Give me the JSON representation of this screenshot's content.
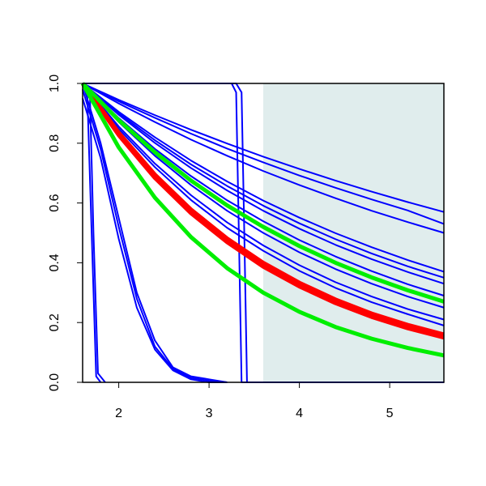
{
  "chart_data": {
    "type": "line",
    "xlim": [
      1.6,
      5.6
    ],
    "ylim": [
      0,
      1
    ],
    "xticks": [
      2,
      3,
      4,
      5
    ],
    "yticks": [
      {
        "value": 0,
        "label": "0.0"
      },
      {
        "value": 0.2,
        "label": "0.2"
      },
      {
        "value": 0.4,
        "label": "0.4"
      },
      {
        "value": 0.6,
        "label": "0.6"
      },
      {
        "value": 0.8,
        "label": "0.8"
      },
      {
        "value": 1,
        "label": "1.0"
      }
    ],
    "shade": {
      "xlim": [
        3.6,
        5.6
      ],
      "color": "#e0eded"
    },
    "x": [
      1.6,
      2.0,
      2.4,
      2.8,
      3.2,
      3.6,
      4.0,
      4.4,
      4.8,
      5.2,
      5.6
    ],
    "series": [
      {
        "color": "#0000ff",
        "values": [
          1,
          0.945,
          0.894,
          0.845,
          0.799,
          0.755,
          0.714,
          0.675,
          0.638,
          0.603,
          0.57
        ]
      },
      {
        "color": "#0000ff",
        "values": [
          1,
          0.94,
          0.885,
          0.832,
          0.782,
          0.736,
          0.692,
          0.651,
          0.612,
          0.575,
          0.53
        ]
      },
      {
        "color": "#0000ff",
        "values": [
          1,
          0.933,
          0.871,
          0.812,
          0.758,
          0.707,
          0.66,
          0.616,
          0.574,
          0.536,
          0.5
        ]
      },
      {
        "color": "#0000ff",
        "values": [
          1,
          0.905,
          0.82,
          0.742,
          0.672,
          0.608,
          0.551,
          0.499,
          0.452,
          0.409,
          0.37
        ]
      },
      {
        "color": "#0000ff",
        "values": [
          1,
          0.9,
          0.81,
          0.729,
          0.657,
          0.591,
          0.532,
          0.479,
          0.431,
          0.388,
          0.35
        ]
      },
      {
        "color": "#0000ff",
        "values": [
          1,
          0.895,
          0.801,
          0.717,
          0.642,
          0.574,
          0.514,
          0.46,
          0.412,
          0.369,
          0.33
        ]
      },
      {
        "color": "#0000ff",
        "values": [
          1,
          0.884,
          0.781,
          0.69,
          0.609,
          0.539,
          0.476,
          0.421,
          0.372,
          0.328,
          0.29
        ]
      },
      {
        "color": "#0000ff",
        "values": [
          1,
          0.871,
          0.758,
          0.66,
          0.574,
          0.5,
          0.435,
          0.379,
          0.33,
          0.287,
          0.25
        ]
      },
      {
        "color": "#0000ff",
        "values": [
          1,
          0.856,
          0.732,
          0.626,
          0.535,
          0.458,
          0.392,
          0.335,
          0.287,
          0.245,
          0.21
        ]
      },
      {
        "color": "#0000ff",
        "values": [
          1,
          0.848,
          0.72,
          0.61,
          0.517,
          0.44,
          0.373,
          0.316,
          0.268,
          0.228,
          0.19
        ]
      },
      {
        "color": "#0000ff",
        "x": [
          1.6,
          1.8,
          2.0,
          2.2,
          2.4,
          2.6,
          2.8,
          3.0,
          3.2
        ],
        "values": [
          0.95,
          0.75,
          0.48,
          0.25,
          0.11,
          0.04,
          0.01,
          0,
          0
        ]
      },
      {
        "color": "#0000ff",
        "x": [
          1.6,
          1.8,
          2.0,
          2.2,
          2.4,
          2.6,
          2.8,
          3.0,
          3.2
        ],
        "values": [
          1,
          0.8,
          0.55,
          0.3,
          0.14,
          0.05,
          0.02,
          0.01,
          0
        ]
      },
      {
        "color": "#0000ff",
        "x": [
          1.6,
          1.8,
          2.0,
          2.2,
          2.4,
          2.6,
          2.8,
          3.0,
          3.2
        ],
        "values": [
          0.98,
          0.78,
          0.52,
          0.28,
          0.12,
          0.045,
          0.015,
          0.005,
          0
        ]
      },
      {
        "color": "#0000ff",
        "x": [
          1.6,
          1.65,
          1.7,
          1.75,
          1.8
        ],
        "values": [
          1,
          0.98,
          0.5,
          0.02,
          0
        ]
      },
      {
        "color": "#0000ff",
        "x": [
          1.6,
          1.68,
          1.72,
          1.77,
          1.85
        ],
        "values": [
          1,
          0.97,
          0.5,
          0.03,
          0
        ]
      },
      {
        "color": "#0000ff",
        "x": [
          1.6,
          3.25,
          3.3,
          3.33,
          3.36,
          5.6
        ],
        "values": [
          1,
          1,
          0.97,
          0.5,
          0,
          0
        ]
      },
      {
        "color": "#0000ff",
        "x": [
          1.6,
          3.3,
          3.36,
          3.39,
          3.42,
          5.6
        ],
        "values": [
          1,
          1,
          0.97,
          0.5,
          0,
          0
        ]
      },
      {
        "color": "#ff0000",
        "values": [
          1,
          0.827,
          0.684,
          0.566,
          0.469,
          0.387,
          0.321,
          0.265,
          0.219,
          0.181,
          0.15
        ]
      },
      {
        "color": "#ff0000",
        "values": [
          1,
          0.835,
          0.695,
          0.578,
          0.481,
          0.4,
          0.333,
          0.277,
          0.23,
          0.192,
          0.16
        ]
      },
      {
        "color": "#00ee00",
        "values": [
          1,
          0.877,
          0.77,
          0.675,
          0.592,
          0.52,
          0.456,
          0.4,
          0.351,
          0.308,
          0.27
        ]
      },
      {
        "color": "#00ee00",
        "values": [
          1,
          0.786,
          0.618,
          0.486,
          0.382,
          0.3,
          0.236,
          0.185,
          0.146,
          0.115,
          0.09
        ]
      }
    ]
  }
}
